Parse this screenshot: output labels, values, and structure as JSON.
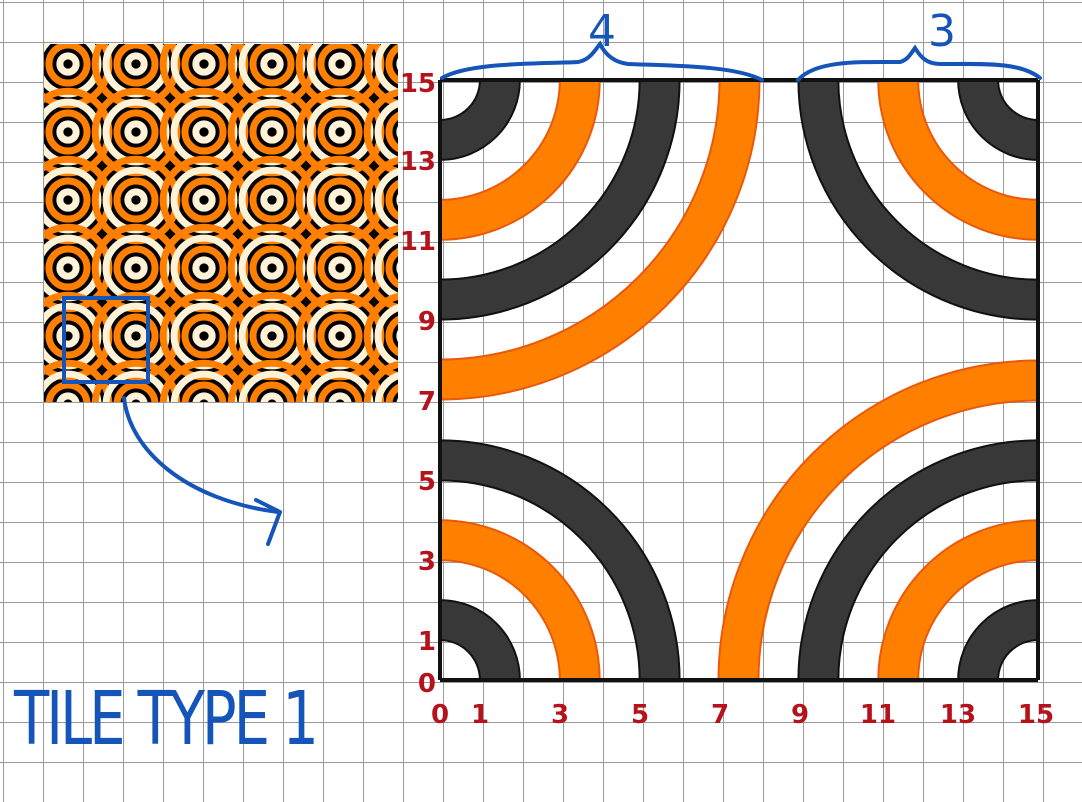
{
  "title": "TILE TYPE 1",
  "span_labels": [
    "4",
    "3"
  ],
  "y_axis_labels": [
    "15",
    "13",
    "11",
    "9",
    "7",
    "5",
    "3",
    "1",
    "0"
  ],
  "x_axis_labels": [
    "0",
    "1",
    "3",
    "5",
    "7",
    "9",
    "11",
    "13",
    "15"
  ],
  "colors": {
    "orange": "#ff7f00",
    "dark_gray": "#383838",
    "cream": "#fff2d6",
    "grid": "#9a9a9a",
    "axis_label": "#b5121b",
    "annotation_blue": "#1554b8",
    "thumbnail_background": "#000000"
  },
  "tile": {
    "grid_units": 15,
    "arcs": [
      {
        "corner": "top-left",
        "color": "dark_gray",
        "inner": 1,
        "outer": 2
      },
      {
        "corner": "top-left",
        "color": "orange",
        "inner": 3,
        "outer": 4
      },
      {
        "corner": "top-left",
        "color": "dark_gray",
        "inner": 5,
        "outer": 6
      },
      {
        "corner": "top-left",
        "color": "orange",
        "inner": 7,
        "outer": 8
      },
      {
        "corner": "top-right",
        "color": "dark_gray",
        "inner": 1,
        "outer": 2
      },
      {
        "corner": "top-right",
        "color": "orange",
        "inner": 3,
        "outer": 4
      },
      {
        "corner": "top-right",
        "color": "dark_gray",
        "inner": 5,
        "outer": 6
      },
      {
        "corner": "bottom-left",
        "color": "dark_gray",
        "inner": 1,
        "outer": 2
      },
      {
        "corner": "bottom-left",
        "color": "orange",
        "inner": 3,
        "outer": 4
      },
      {
        "corner": "bottom-left",
        "color": "dark_gray",
        "inner": 5,
        "outer": 6
      },
      {
        "corner": "bottom-right",
        "color": "dark_gray",
        "inner": 1,
        "outer": 2
      },
      {
        "corner": "bottom-right",
        "color": "orange",
        "inner": 3,
        "outer": 4
      },
      {
        "corner": "bottom-right",
        "color": "dark_gray",
        "inner": 5,
        "outer": 6
      },
      {
        "corner": "bottom-right",
        "color": "orange",
        "inner": 7,
        "outer": 8
      }
    ]
  },
  "thumbnail": {
    "rings": [
      {
        "color": "cream",
        "radius": 0.12
      },
      {
        "color": "orange",
        "radius": 0.28
      },
      {
        "color": "cream",
        "radius": 0.44
      },
      {
        "color": "orange",
        "radius": 0.6
      }
    ]
  }
}
